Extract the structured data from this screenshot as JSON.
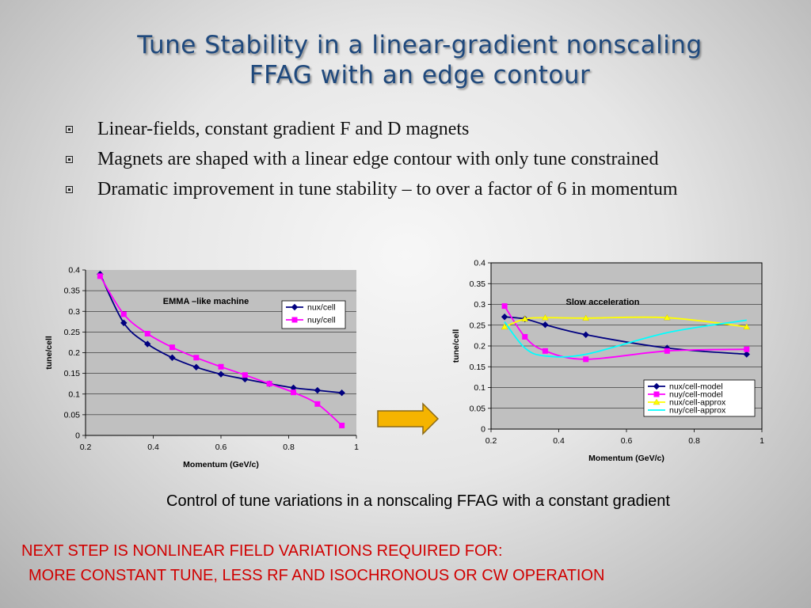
{
  "slide": {
    "title_line1": "Tune Stability in a linear-gradient nonscaling",
    "title_line2": "FFAG with an edge contour",
    "bullets": [
      "Linear-fields, constant gradient F and D magnets",
      "Magnets are shaped with a linear edge contour with only tune constrained",
      "Dramatic improvement in tune stability – to over a factor of 6 in momentum"
    ],
    "caption": "Control of tune variations in a nonscaling FFAG with a constant gradient",
    "next_step_line1": "NEXT STEP IS NONLINEAR FIELD VARIATIONS REQUIRED FOR:",
    "next_step_line2": "MORE CONSTANT TUNE, LESS RF AND ISOCHRONOUS OR CW OPERATION",
    "colors": {
      "title": "#1f497d",
      "next_step": "#d00000",
      "arrow_fill": "#f5b400",
      "arrow_stroke": "#8a6a1a"
    },
    "icons": {
      "bullet": "square-bullet-icon",
      "arrow": "right-arrow-icon"
    }
  },
  "chart_data": [
    {
      "type": "line",
      "title": "EMMA –like machine",
      "xlabel": "Momentum (GeV/c)",
      "ylabel": "tune/cell",
      "xlim": [
        0.2,
        1
      ],
      "ylim": [
        0,
        0.4
      ],
      "xticks": [
        "0.2",
        "0.4",
        "0.6",
        "0.8",
        "1"
      ],
      "yticks": [
        "0",
        "0.05",
        "0.1",
        "0.15",
        "0.2",
        "0.25",
        "0.3",
        "0.35",
        "0.4"
      ],
      "grid": "horizontal",
      "legend_position": "top-right",
      "plot_background": "#c0c0c0",
      "series": [
        {
          "name": "nux/cell",
          "color": "#000080",
          "marker": "diamond",
          "x": [
            0.243,
            0.313,
            0.383,
            0.456,
            0.527,
            0.6,
            0.671,
            0.743,
            0.814,
            0.885,
            0.957
          ],
          "y": [
            0.39,
            0.272,
            0.221,
            0.188,
            0.165,
            0.148,
            0.136,
            0.125,
            0.115,
            0.109,
            0.103
          ]
        },
        {
          "name": "nuy/cell",
          "color": "#ff00ff",
          "marker": "square",
          "x": [
            0.243,
            0.313,
            0.383,
            0.456,
            0.527,
            0.6,
            0.671,
            0.743,
            0.814,
            0.885,
            0.957
          ],
          "y": [
            0.385,
            0.293,
            0.246,
            0.213,
            0.188,
            0.166,
            0.146,
            0.125,
            0.104,
            0.076,
            0.024
          ]
        }
      ]
    },
    {
      "type": "line",
      "title": "Slow acceleration",
      "xlabel": "Momentum (GeV/c)",
      "ylabel": "tune/cell",
      "xlim": [
        0.2,
        1
      ],
      "ylim": [
        0,
        0.4
      ],
      "xticks": [
        "0.2",
        "0.4",
        "0.6",
        "0.8",
        "1"
      ],
      "yticks": [
        "0",
        "0.05",
        "0.1",
        "0.15",
        "0.2",
        "0.25",
        "0.3",
        "0.35",
        "0.4"
      ],
      "grid": "horizontal",
      "legend_position": "bottom-right",
      "plot_background": "#c0c0c0",
      "series": [
        {
          "name": "nux/cell-model",
          "color": "#000080",
          "marker": "diamond",
          "x": [
            0.24,
            0.3,
            0.36,
            0.48,
            0.72,
            0.955
          ],
          "y": [
            0.27,
            0.265,
            0.251,
            0.227,
            0.195,
            0.18
          ]
        },
        {
          "name": "nuy/cell-model",
          "color": "#ff00ff",
          "marker": "square",
          "x": [
            0.24,
            0.3,
            0.36,
            0.48,
            0.72,
            0.955
          ],
          "y": [
            0.296,
            0.222,
            0.188,
            0.168,
            0.188,
            0.192
          ]
        },
        {
          "name": "nux/cell-approx",
          "color": "#ffff00",
          "marker": "triangle",
          "x": [
            0.24,
            0.3,
            0.36,
            0.48,
            0.72,
            0.955
          ],
          "y": [
            0.246,
            0.265,
            0.268,
            0.267,
            0.268,
            0.246
          ]
        },
        {
          "name": "nuy/cell-approx",
          "color": "#00ffff",
          "marker": "line",
          "x": [
            0.24,
            0.3,
            0.36,
            0.48,
            0.72,
            0.955
          ],
          "y": [
            0.258,
            0.195,
            0.176,
            0.18,
            0.232,
            0.262
          ]
        }
      ]
    }
  ]
}
